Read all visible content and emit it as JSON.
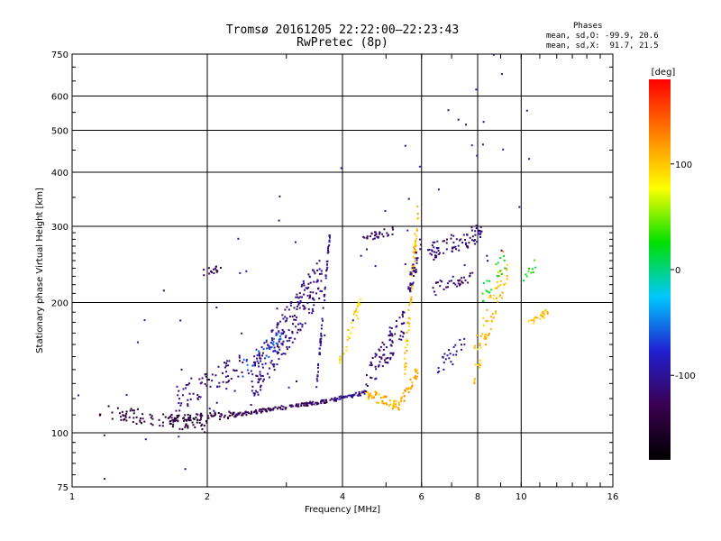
{
  "header": {
    "title": "Tromsø 20161205 22:22:00–22:23:43",
    "subtitle": "RwPretec (8p)",
    "phase_label": "Phases",
    "phase_o": "mean, sd,O: -99.9, 20.6",
    "phase_x": "mean, sd,X:  91.7, 21.5"
  },
  "chart_data": {
    "type": "scatter",
    "xlabel": "Frequency [MHz]",
    "ylabel": "Stationary phase Virtual Height [km]",
    "x_scale": "log",
    "y_scale": "log",
    "xlim": [
      1,
      16
    ],
    "ylim": [
      75,
      750
    ],
    "x_ticks": [
      1,
      2,
      4,
      6,
      8,
      10,
      16
    ],
    "x_tick_labels": [
      "1",
      "2",
      "4",
      "6",
      "8",
      "10",
      "16"
    ],
    "y_ticks": [
      75,
      100,
      200,
      300,
      400,
      500,
      600,
      750
    ],
    "y_tick_labels": [
      "75",
      "100",
      "200",
      "300",
      "400",
      "500",
      "600",
      "750"
    ],
    "grid": true,
    "colorbar": {
      "label": "[deg]",
      "range": [
        -180,
        180
      ],
      "ticks": [
        100,
        0,
        -100
      ],
      "tick_labels": [
        "100",
        "0",
        "-100"
      ],
      "colors": [
        "#000000",
        "#3a0050",
        "#2020d0",
        "#00c8ff",
        "#00e000",
        "#ffff00",
        "#ff8000",
        "#ff0000"
      ]
    },
    "series": [
      {
        "x_range": [
          1.15,
          2.0
        ],
        "y_from": 112,
        "y_to": 104,
        "phase": -145,
        "count": 90,
        "spread": 0.04
      },
      {
        "x_range": [
          1.65,
          2.3
        ],
        "y_from": 108,
        "y_to": 110,
        "phase": -140,
        "count": 70,
        "spread": 0.02
      },
      {
        "x_range": [
          2.3,
          3.8
        ],
        "y_from": 110,
        "y_to": 119,
        "phase": -125,
        "count": 130,
        "spread": 0.01
      },
      {
        "x_range": [
          3.8,
          4.5
        ],
        "y_from": 119,
        "y_to": 124,
        "phase": -105,
        "count": 45,
        "spread": 0.01
      },
      {
        "x_range": [
          4.5,
          5.4
        ],
        "y_from": 124,
        "y_to": 114,
        "phase": 110,
        "count": 60,
        "spread": 0.03
      },
      {
        "x_range": [
          5.4,
          5.9
        ],
        "y_from": 118,
        "y_to": 140,
        "phase": 115,
        "count": 35,
        "spread": 0.03
      },
      {
        "x_range": [
          2.5,
          3.6
        ],
        "y_from": 130,
        "y_to": 230,
        "phase": -110,
        "count": 220,
        "spread": 0.12
      },
      {
        "x_range": [
          2.4,
          3.0
        ],
        "y_from": 140,
        "y_to": 170,
        "phase": -65,
        "count": 40,
        "spread": 0.05
      },
      {
        "x_range": [
          1.7,
          2.4
        ],
        "y_from": 118,
        "y_to": 145,
        "phase": -115,
        "count": 70,
        "spread": 0.06
      },
      {
        "x_range": [
          1.95,
          2.15
        ],
        "y_from": 235,
        "y_to": 240,
        "phase": -125,
        "count": 15,
        "spread": 0.02
      },
      {
        "x_range": [
          3.5,
          3.75
        ],
        "y_from": 125,
        "y_to": 290,
        "phase": -105,
        "count": 60,
        "spread": 0.03
      },
      {
        "x_range": [
          3.9,
          4.4
        ],
        "y_from": 140,
        "y_to": 200,
        "phase": 95,
        "count": 30,
        "spread": 0.05
      },
      {
        "x_range": [
          4.5,
          5.5
        ],
        "y_from": 130,
        "y_to": 180,
        "phase": -115,
        "count": 80,
        "spread": 0.08
      },
      {
        "x_range": [
          4.4,
          5.3
        ],
        "y_from": 280,
        "y_to": 295,
        "phase": -120,
        "count": 30,
        "spread": 0.02
      },
      {
        "x_range": [
          5.5,
          5.9
        ],
        "y_from": 140,
        "y_to": 330,
        "phase": 105,
        "count": 70,
        "spread": 0.08
      },
      {
        "x_range": [
          5.6,
          6.0
        ],
        "y_from": 210,
        "y_to": 280,
        "phase": -110,
        "count": 35,
        "spread": 0.06
      },
      {
        "x_range": [
          6.2,
          8.2
        ],
        "y_from": 260,
        "y_to": 290,
        "phase": -115,
        "count": 80,
        "spread": 0.05
      },
      {
        "x_range": [
          6.3,
          7.8
        ],
        "y_from": 215,
        "y_to": 230,
        "phase": -120,
        "count": 35,
        "spread": 0.03
      },
      {
        "x_range": [
          6.5,
          7.5
        ],
        "y_from": 140,
        "y_to": 160,
        "phase": -100,
        "count": 25,
        "spread": 0.05
      },
      {
        "x_range": [
          7.8,
          9.4
        ],
        "y_from": 140,
        "y_to": 260,
        "phase": 105,
        "count": 70,
        "spread": 0.12
      },
      {
        "x_range": [
          8.2,
          9.2
        ],
        "y_from": 210,
        "y_to": 250,
        "phase": 20,
        "count": 20,
        "spread": 0.05
      },
      {
        "x_range": [
          10.4,
          11.5
        ],
        "y_from": 180,
        "y_to": 190,
        "phase": 100,
        "count": 25,
        "spread": 0.02
      },
      {
        "x_range": [
          10.0,
          11.0
        ],
        "y_from": 230,
        "y_to": 250,
        "phase": 25,
        "count": 10,
        "spread": 0.04
      },
      {
        "x_range": [
          1.0,
          10.5
        ],
        "y_from": 95,
        "y_to": 520,
        "phase": -100,
        "count": 70,
        "spread": 0.6
      }
    ]
  }
}
